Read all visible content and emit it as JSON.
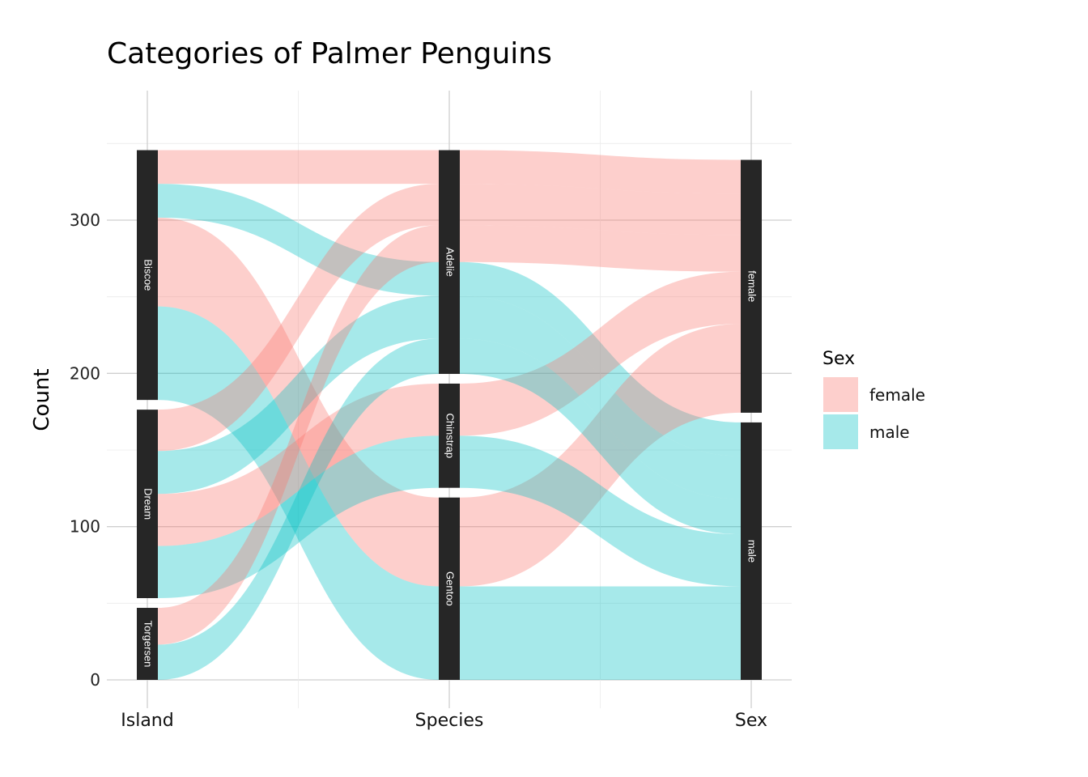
{
  "chart_data": {
    "type": "alluvial",
    "title": "Categories of Palmer Penguins",
    "ylabel": "Count",
    "xlabel": "",
    "ylim": [
      0,
      370
    ],
    "yticks": [
      0,
      100,
      200,
      300
    ],
    "grid": true,
    "legend": {
      "title": "Sex",
      "position": "right",
      "entries": [
        "female",
        "male"
      ]
    },
    "colors": {
      "female": "#F8766D",
      "male": "#00BFC4",
      "stratum": "#262626"
    },
    "axes": [
      {
        "name": "Island",
        "strata": [
          "Torgersen",
          "Dream",
          "Biscoe"
        ]
      },
      {
        "name": "Species",
        "strata": [
          "Gentoo",
          "Chinstrap",
          "Adelie"
        ]
      },
      {
        "name": "Sex",
        "strata": [
          "male",
          "female"
        ]
      }
    ],
    "flows": [
      {
        "island": "Biscoe",
        "species": "Adelie",
        "sex": "female",
        "count": 22
      },
      {
        "island": "Biscoe",
        "species": "Adelie",
        "sex": "male",
        "count": 22
      },
      {
        "island": "Biscoe",
        "species": "Gentoo",
        "sex": "female",
        "count": 58
      },
      {
        "island": "Biscoe",
        "species": "Gentoo",
        "sex": "male",
        "count": 61
      },
      {
        "island": "Dream",
        "species": "Adelie",
        "sex": "female",
        "count": 27
      },
      {
        "island": "Dream",
        "species": "Adelie",
        "sex": "male",
        "count": 28
      },
      {
        "island": "Dream",
        "species": "Chinstrap",
        "sex": "female",
        "count": 34
      },
      {
        "island": "Dream",
        "species": "Chinstrap",
        "sex": "male",
        "count": 34
      },
      {
        "island": "Torgersen",
        "species": "Adelie",
        "sex": "female",
        "count": 24
      },
      {
        "island": "Torgersen",
        "species": "Adelie",
        "sex": "male",
        "count": 23
      }
    ]
  }
}
